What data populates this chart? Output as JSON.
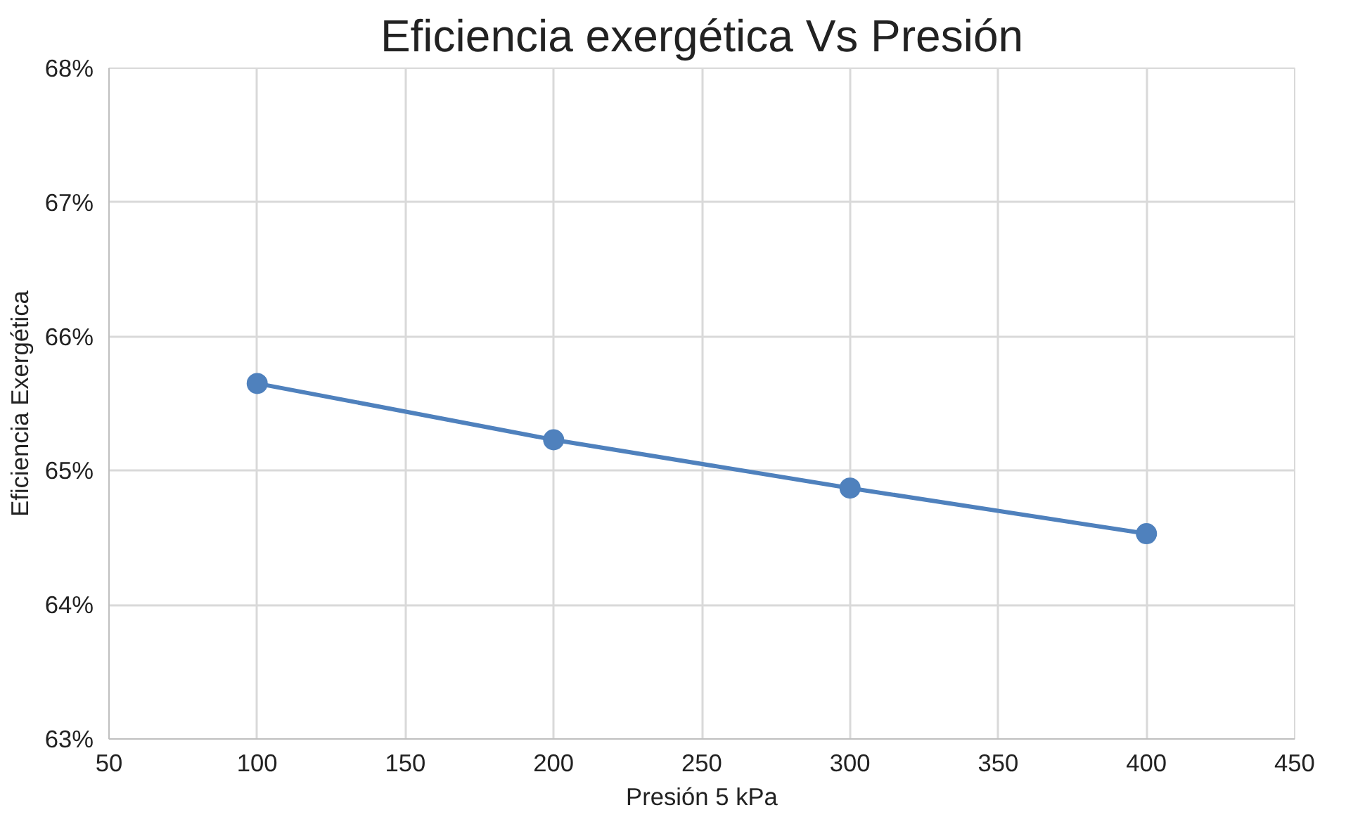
{
  "chart_data": {
    "type": "line",
    "title": "Eficiencia exergética Vs Presión",
    "xlabel": "Presión 5 kPa",
    "ylabel": "Eficiencia Exergética",
    "x": [
      100,
      200,
      300,
      400
    ],
    "series": [
      {
        "color": "#4f81bd",
        "values": [
          65.65,
          65.23,
          64.87,
          64.53
        ]
      }
    ],
    "xlim": [
      50,
      450
    ],
    "xticks": [
      50,
      100,
      150,
      200,
      250,
      300,
      350,
      400,
      450
    ],
    "ylim": [
      63,
      68
    ],
    "yticks": [
      {
        "value": 63,
        "label": "63%"
      },
      {
        "value": 64,
        "label": "64%"
      },
      {
        "value": 65,
        "label": "65%"
      },
      {
        "value": 66,
        "label": "66%"
      },
      {
        "value": 67,
        "label": "67%"
      },
      {
        "value": 68,
        "label": "68%"
      }
    ],
    "grid": true,
    "marker": "circle",
    "line_style": "solid"
  }
}
